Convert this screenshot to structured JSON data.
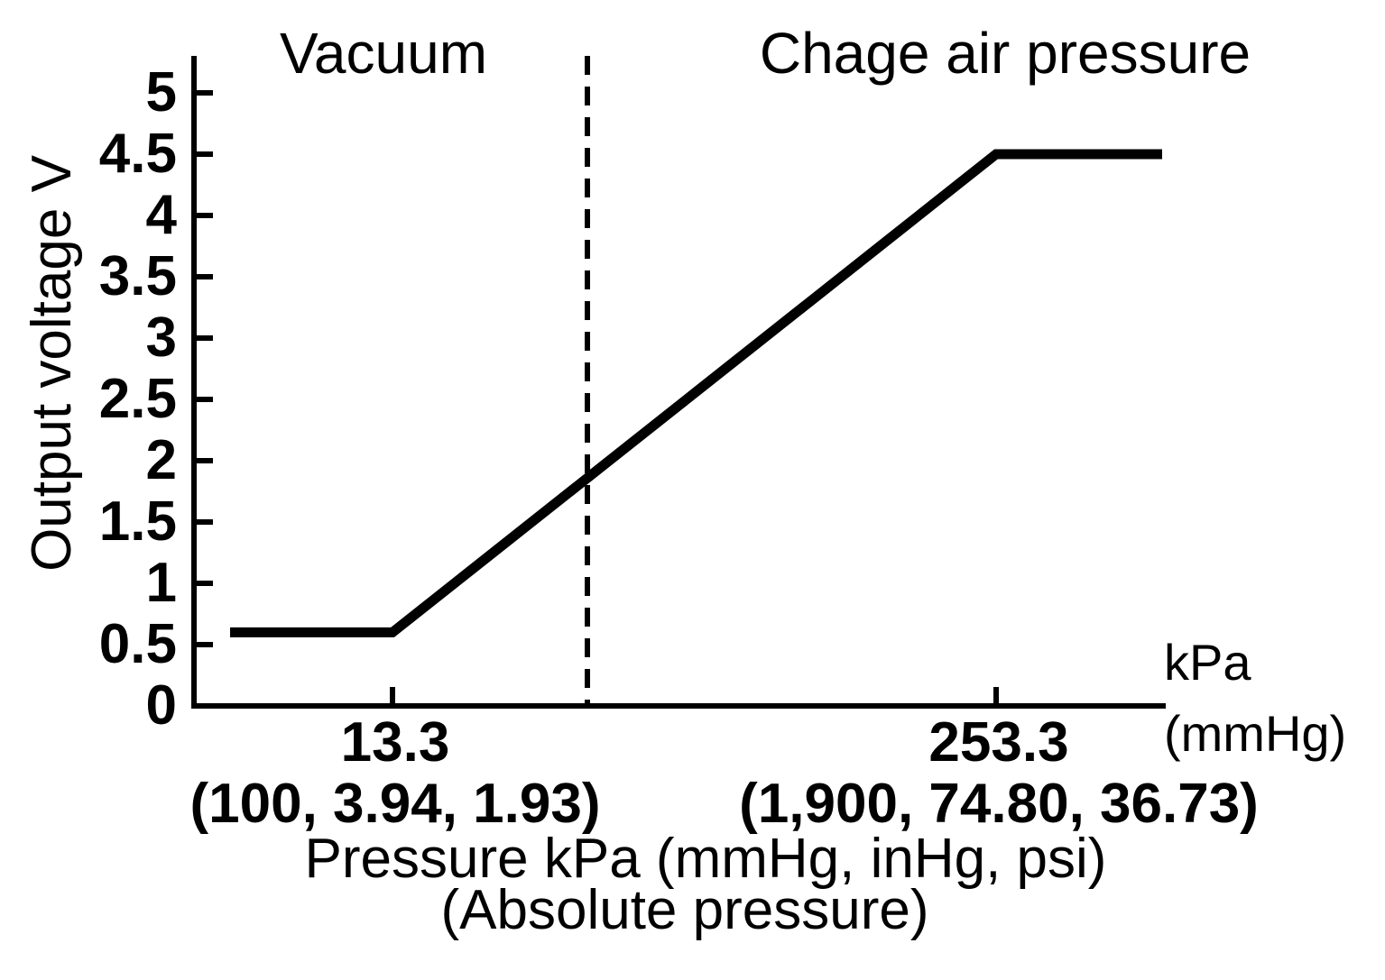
{
  "canvas": {
    "background": "#ffffff",
    "ink": "#000000"
  },
  "chart_data": {
    "type": "line",
    "description": "Pressure sensor output characteristic: output voltage versus absolute pressure",
    "region_labels": {
      "left": "Vacuum",
      "right": "Chage air pressure"
    },
    "y_axis": {
      "label": "Output voltage V",
      "range": [
        0,
        5
      ],
      "tick_step": 0.5,
      "tick_labels": [
        "0",
        "0.5",
        "1",
        "1.5",
        "2",
        "2.5",
        "3",
        "3.5",
        "4",
        "4.5",
        "5"
      ]
    },
    "x_axis": {
      "label_line1": "Pressure kPa (mmHg, inHg, psi)",
      "label_line2": "(Absolute pressure)",
      "unit_line1": "kPa",
      "unit_line2": "(mmHg)",
      "ticks": [
        {
          "value_kpa": 13.3,
          "label": "13.3",
          "alt_units_label": "(100, 3.94, 1.93)"
        },
        {
          "value_kpa": 253.3,
          "label": "253.3",
          "alt_units_label": "(1,900, 74.80, 36.73)"
        }
      ]
    },
    "series": [
      {
        "name": "Output voltage",
        "segments": [
          {
            "type": "flat",
            "voltage_v": 0.6,
            "range": "below 13.3 kPa"
          },
          {
            "type": "linear",
            "from": {
              "kpa": 13.3,
              "v": 0.6
            },
            "to": {
              "kpa": 253.3,
              "v": 4.5
            }
          },
          {
            "type": "flat",
            "voltage_v": 4.5,
            "range": "above 253.3 kPa"
          }
        ]
      }
    ],
    "divider": {
      "style": "dashed",
      "orientation": "vertical",
      "separates": [
        "Vacuum",
        "Chage air pressure"
      ]
    },
    "grid": false,
    "legend": "none"
  }
}
